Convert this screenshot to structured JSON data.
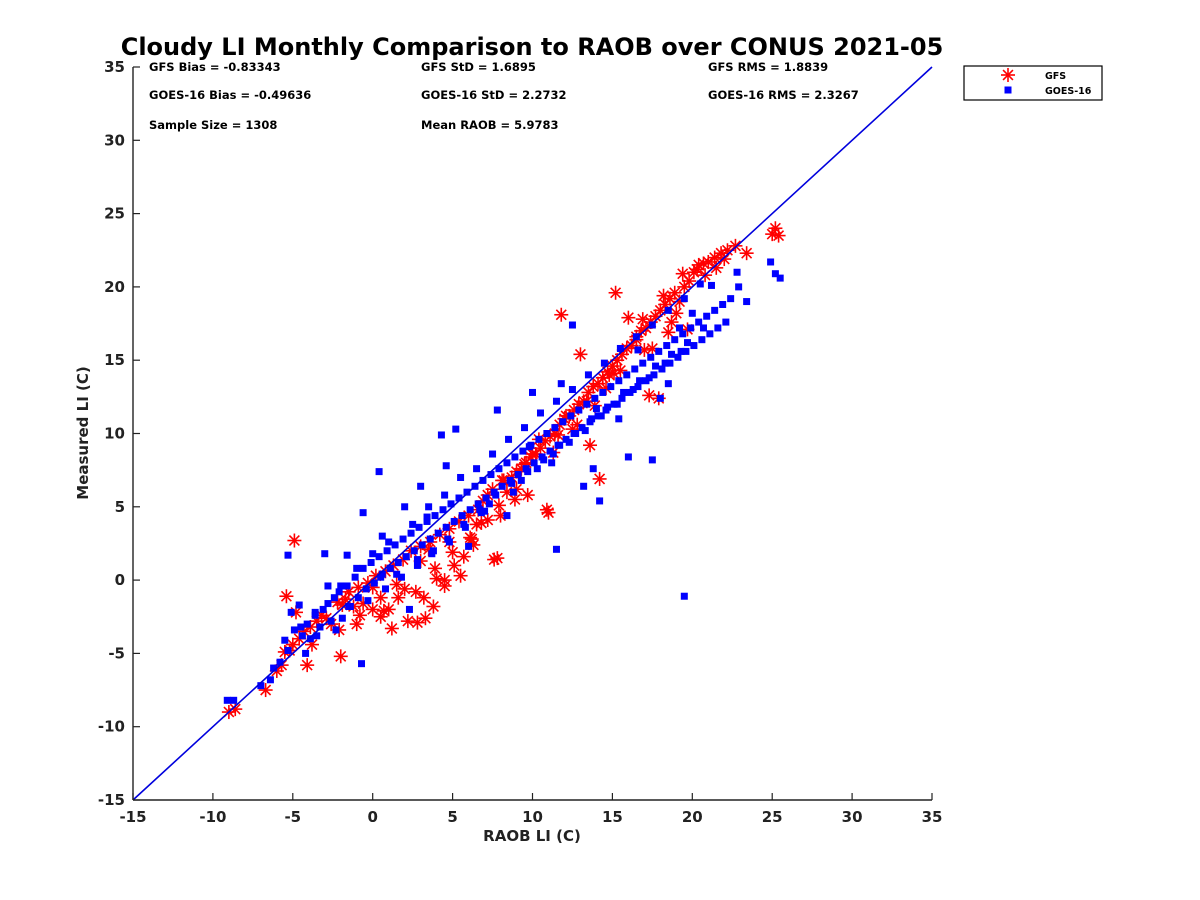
{
  "chart_data": {
    "type": "scatter",
    "title": "Cloudy LI Monthly Comparison to RAOB over CONUS 2021-05",
    "xlabel": "RAOB LI (C)",
    "ylabel": "Measured LI (C)",
    "xlim": [
      -15,
      35
    ],
    "ylim": [
      -15,
      35
    ],
    "xticks": [
      "-15",
      "-10",
      "-5",
      "0",
      "5",
      "10",
      "15",
      "20",
      "25",
      "30",
      "35"
    ],
    "yticks": [
      "-15",
      "-10",
      "-5",
      "0",
      "5",
      "10",
      "15",
      "20",
      "25",
      "30",
      "35"
    ],
    "grid": false,
    "legend_position": "outside-top-right",
    "reference_line": {
      "x": [
        -15,
        35
      ],
      "y": [
        -15,
        35
      ],
      "color": "#0000dd"
    },
    "stats": [
      [
        "GFS Bias = -0.83343",
        "GFS StD = 1.6895",
        "GFS RMS = 1.8839"
      ],
      [
        "GOES-16 Bias = -0.49636",
        "GOES-16 StD = 2.2732",
        "GOES-16 RMS = 2.3267"
      ],
      [
        "Sample Size = 1308",
        "Mean RAOB = 5.9783"
      ]
    ],
    "series": [
      {
        "name": "GFS",
        "marker": "asterisk",
        "color": "#ff0000",
        "x": [
          -9.0,
          -8.6,
          -6.7,
          -6.0,
          -5.7,
          -5.5,
          -5.4,
          -5.0,
          -4.9,
          -4.6,
          -4.3,
          -4.1,
          -3.9,
          -3.5,
          -3.2,
          -2.9,
          -2.6,
          -2.2,
          -2.0,
          -1.7,
          -1.5,
          -1.2,
          -0.9,
          -0.6,
          -0.3,
          0.0,
          0.2,
          0.5,
          0.8,
          1.0,
          1.3,
          1.6,
          1.9,
          2.2,
          2.4,
          2.7,
          3.0,
          3.3,
          3.6,
          3.9,
          4.2,
          4.5,
          4.8,
          5.1,
          5.4,
          5.7,
          6.0,
          6.3,
          6.6,
          6.9,
          7.2,
          7.5,
          7.8,
          8.1,
          8.4,
          8.7,
          9.0,
          9.3,
          9.6,
          9.9,
          10.2,
          10.5,
          10.8,
          11.1,
          11.4,
          11.7,
          12.0,
          12.3,
          12.6,
          12.9,
          13.2,
          13.5,
          13.8,
          14.1,
          14.4,
          14.7,
          15.0,
          15.3,
          15.6,
          15.9,
          16.2,
          16.5,
          16.8,
          17.1,
          17.4,
          17.7,
          18.0,
          18.3,
          18.6,
          18.9,
          19.2,
          19.5,
          19.8,
          20.1,
          20.4,
          20.7,
          21.0,
          21.4,
          21.8,
          22.2,
          22.7,
          23.4,
          25.0,
          25.2,
          25.4,
          -5.2,
          -4.8,
          -1.9,
          0.5,
          2.8,
          3.5,
          4.5,
          6.8,
          8.2,
          9.5,
          11.0,
          11.8,
          13.0,
          14.2,
          15.2,
          16.0,
          17.3,
          18.2,
          19.4,
          20.3,
          -2.1,
          -3.8,
          -0.8,
          1.2,
          3.8,
          5.5,
          7.2,
          7.6,
          9.0,
          10.4,
          12.1,
          13.6,
          14.8,
          16.5,
          17.9,
          19.0,
          20.8,
          21.5,
          22.0,
          3.2,
          5.0,
          6.1,
          8.9,
          10.9,
          12.8,
          14.6,
          16.9,
          18.7,
          -1.0,
          0.7,
          2.0,
          4.0,
          6.5,
          8.0,
          9.7,
          11.3,
          12.5,
          13.9,
          15.5,
          17.5,
          19.7,
          0.0,
          1.5,
          3.0,
          4.8,
          6.2,
          7.9,
          10.0,
          11.6,
          13.4,
          15.1,
          17.0,
          18.5
        ],
        "y": [
          -9.0,
          -8.8,
          -7.5,
          -6.2,
          -5.8,
          -4.9,
          -1.1,
          -4.4,
          2.7,
          -4.0,
          -3.5,
          -5.8,
          -3.2,
          -2.8,
          -2.4,
          -2.6,
          -3.0,
          -1.5,
          -5.2,
          -1.3,
          -0.8,
          -1.8,
          -0.5,
          -1.6,
          -0.2,
          -0.5,
          0.3,
          -2.5,
          0.6,
          -2.0,
          1.0,
          -1.2,
          1.4,
          -2.8,
          2.0,
          -0.8,
          2.3,
          -2.6,
          2.6,
          0.8,
          3.1,
          0.0,
          3.5,
          1.0,
          4.0,
          1.6,
          4.4,
          2.4,
          4.8,
          5.4,
          5.8,
          6.2,
          1.5,
          6.8,
          6.0,
          7.0,
          7.4,
          7.6,
          8.0,
          8.4,
          8.6,
          9.0,
          9.5,
          9.8,
          10.0,
          10.6,
          11.0,
          11.2,
          11.6,
          12.0,
          12.2,
          12.8,
          13.2,
          13.4,
          13.8,
          14.2,
          14.6,
          15.0,
          15.4,
          15.8,
          16.0,
          16.6,
          17.0,
          17.2,
          17.6,
          18.0,
          18.4,
          18.8,
          19.2,
          19.6,
          19.0,
          20.0,
          20.4,
          21.0,
          21.5,
          21.6,
          21.7,
          22.0,
          22.3,
          22.5,
          22.8,
          22.3,
          23.6,
          24.0,
          23.5,
          -4.8,
          -2.2,
          -1.7,
          -1.2,
          -2.9,
          2.1,
          -0.4,
          3.9,
          6.8,
          7.9,
          4.6,
          18.1,
          15.4,
          6.9,
          19.6,
          17.9,
          12.6,
          19.4,
          20.9,
          21.2,
          -3.4,
          -4.4,
          -2.4,
          -3.3,
          -1.8,
          0.3,
          4.1,
          1.4,
          6.2,
          9.6,
          11.2,
          9.2,
          14.0,
          16.4,
          12.4,
          18.2,
          20.8,
          21.3,
          21.9,
          -1.2,
          1.9,
          2.9,
          5.5,
          4.8,
          10.6,
          13.1,
          17.8,
          17.6,
          -3.0,
          -2.1,
          -0.6,
          0.1,
          3.8,
          4.4,
          5.8,
          8.7,
          10.3,
          11.9,
          14.3,
          15.8,
          17.1,
          -2.0,
          -0.3,
          1.3,
          2.6,
          2.8,
          5.1,
          8.6,
          9.9,
          12.2,
          14.1,
          15.7,
          16.9
        ]
      },
      {
        "name": "GOES-16",
        "marker": "square",
        "color": "#0000ff",
        "x": [
          -9.1,
          -8.7,
          -7.0,
          -6.4,
          -6.2,
          -5.8,
          -5.5,
          -5.3,
          -5.1,
          -4.9,
          -4.6,
          -4.4,
          -4.1,
          -3.9,
          -3.6,
          -3.3,
          -3.1,
          -2.8,
          -2.6,
          -2.4,
          -2.1,
          -1.9,
          -1.6,
          -1.4,
          -1.1,
          -0.9,
          -0.6,
          -0.4,
          -0.1,
          0.1,
          0.4,
          0.6,
          0.9,
          1.1,
          1.4,
          1.6,
          1.9,
          2.1,
          2.4,
          2.6,
          2.9,
          3.1,
          3.4,
          3.6,
          3.9,
          4.1,
          4.4,
          4.6,
          4.9,
          5.1,
          5.4,
          5.6,
          5.9,
          6.1,
          6.4,
          6.6,
          6.9,
          7.1,
          7.4,
          7.6,
          7.9,
          8.1,
          8.4,
          8.6,
          8.9,
          9.1,
          9.4,
          9.6,
          9.9,
          10.1,
          10.4,
          10.6,
          10.9,
          11.1,
          11.4,
          11.6,
          11.9,
          12.1,
          12.4,
          12.6,
          12.9,
          13.1,
          13.4,
          13.6,
          13.9,
          14.1,
          14.4,
          14.6,
          14.9,
          15.1,
          15.4,
          15.6,
          15.9,
          16.1,
          16.4,
          16.6,
          16.9,
          17.1,
          17.4,
          17.6,
          17.9,
          18.1,
          18.4,
          18.6,
          18.9,
          19.1,
          19.4,
          19.6,
          19.9,
          20.1,
          20.4,
          20.6,
          20.9,
          21.1,
          21.4,
          21.6,
          21.9,
          22.1,
          22.4,
          22.9,
          23.4,
          24.9,
          25.2,
          25.5,
          -5.3,
          -3.0,
          -2.8,
          -1.6,
          -0.7,
          -0.6,
          0.4,
          0.6,
          2.0,
          2.3,
          3.0,
          3.4,
          4.3,
          4.6,
          5.2,
          6.0,
          7.0,
          7.8,
          8.4,
          9.8,
          10.0,
          11.2,
          11.5,
          11.8,
          12.5,
          13.2,
          13.8,
          14.0,
          14.2,
          15.4,
          16.0,
          16.6,
          17.5,
          18.0,
          18.5,
          19.2,
          19.5,
          20.0,
          21.2,
          22.8,
          -4.5,
          -3.6,
          -2.0,
          -1.0,
          0.0,
          1.0,
          2.5,
          3.5,
          4.5,
          5.5,
          6.5,
          7.5,
          8.5,
          9.5,
          10.5,
          11.5,
          12.5,
          13.5,
          14.5,
          15.5,
          16.5,
          17.5,
          18.5,
          19.5,
          20.5,
          -3.5,
          -1.5,
          0.5,
          1.5,
          2.8,
          3.8,
          4.8,
          5.8,
          6.8,
          7.3,
          8.8,
          9.3,
          10.3,
          11.3,
          12.3,
          13.3,
          14.3,
          15.3,
          16.3,
          17.3,
          18.3,
          19.3,
          -4.2,
          -2.3,
          -0.3,
          0.8,
          1.8,
          2.8,
          3.7,
          4.7,
          5.7,
          6.7,
          7.7,
          8.7,
          9.7,
          10.7,
          11.7,
          12.7,
          13.7,
          14.7,
          15.7,
          16.7,
          17.7,
          18.7,
          19.7,
          20.7
        ],
        "y": [
          -8.2,
          -8.2,
          -7.2,
          -6.8,
          -6.0,
          -5.6,
          -4.1,
          -4.8,
          -2.2,
          -3.4,
          -1.7,
          -3.8,
          -3.0,
          -4.0,
          -2.4,
          -3.2,
          -2.0,
          -1.6,
          -2.8,
          -1.2,
          -0.8,
          -2.6,
          -0.4,
          -1.8,
          0.2,
          -1.2,
          0.8,
          -0.6,
          1.2,
          -0.2,
          1.6,
          0.4,
          2.0,
          0.8,
          2.4,
          1.2,
          2.8,
          1.6,
          3.2,
          2.0,
          3.6,
          2.4,
          4.0,
          2.8,
          4.4,
          3.2,
          4.8,
          3.6,
          5.2,
          4.0,
          5.6,
          4.4,
          6.0,
          4.8,
          6.4,
          5.2,
          6.8,
          5.6,
          7.2,
          6.0,
          7.6,
          6.4,
          8.0,
          6.8,
          8.4,
          7.2,
          8.8,
          7.6,
          9.2,
          8.0,
          9.6,
          8.4,
          10.0,
          8.8,
          10.4,
          9.2,
          10.8,
          9.6,
          11.2,
          10.0,
          11.6,
          10.4,
          12.0,
          10.8,
          12.4,
          11.2,
          12.8,
          11.6,
          13.2,
          12.0,
          13.6,
          12.4,
          14.0,
          12.8,
          14.4,
          13.2,
          14.8,
          13.6,
          15.2,
          14.0,
          15.6,
          14.4,
          16.0,
          14.8,
          16.4,
          15.2,
          16.8,
          15.6,
          17.2,
          16.0,
          17.6,
          16.4,
          18.0,
          16.8,
          18.4,
          17.2,
          18.8,
          17.6,
          19.2,
          20.0,
          19.0,
          21.7,
          20.9,
          20.6,
          1.7,
          1.8,
          -0.4,
          1.7,
          -5.7,
          4.6,
          7.4,
          3.0,
          5.0,
          -2.0,
          6.4,
          4.3,
          9.9,
          7.8,
          10.3,
          2.3,
          4.7,
          11.6,
          4.4,
          9.1,
          12.8,
          8.0,
          2.1,
          13.4,
          17.4,
          6.4,
          7.6,
          11.7,
          5.4,
          11.0,
          8.4,
          15.7,
          8.2,
          12.4,
          13.4,
          17.2,
          -1.1,
          18.2,
          20.1,
          21.0,
          -3.2,
          -2.2,
          -0.4,
          0.8,
          1.8,
          2.6,
          3.8,
          5.0,
          5.8,
          7.0,
          7.6,
          8.6,
          9.6,
          10.4,
          11.4,
          12.2,
          13.0,
          14.0,
          14.8,
          15.8,
          16.6,
          17.4,
          18.4,
          19.2,
          20.2,
          -3.8,
          -1.8,
          0.2,
          0.4,
          1.4,
          2.0,
          2.6,
          3.6,
          4.6,
          5.2,
          6.0,
          6.8,
          7.6,
          8.6,
          9.4,
          10.2,
          11.2,
          12.0,
          13.0,
          13.8,
          14.8,
          15.6,
          -5.0,
          -3.4,
          -1.4,
          -0.6,
          0.2,
          1.0,
          1.8,
          2.8,
          3.8,
          4.8,
          5.8,
          6.6,
          7.4,
          8.2,
          9.2,
          10.0,
          11.0,
          11.8,
          12.8,
          13.6,
          14.6,
          15.4,
          16.2,
          17.2
        ]
      }
    ]
  }
}
